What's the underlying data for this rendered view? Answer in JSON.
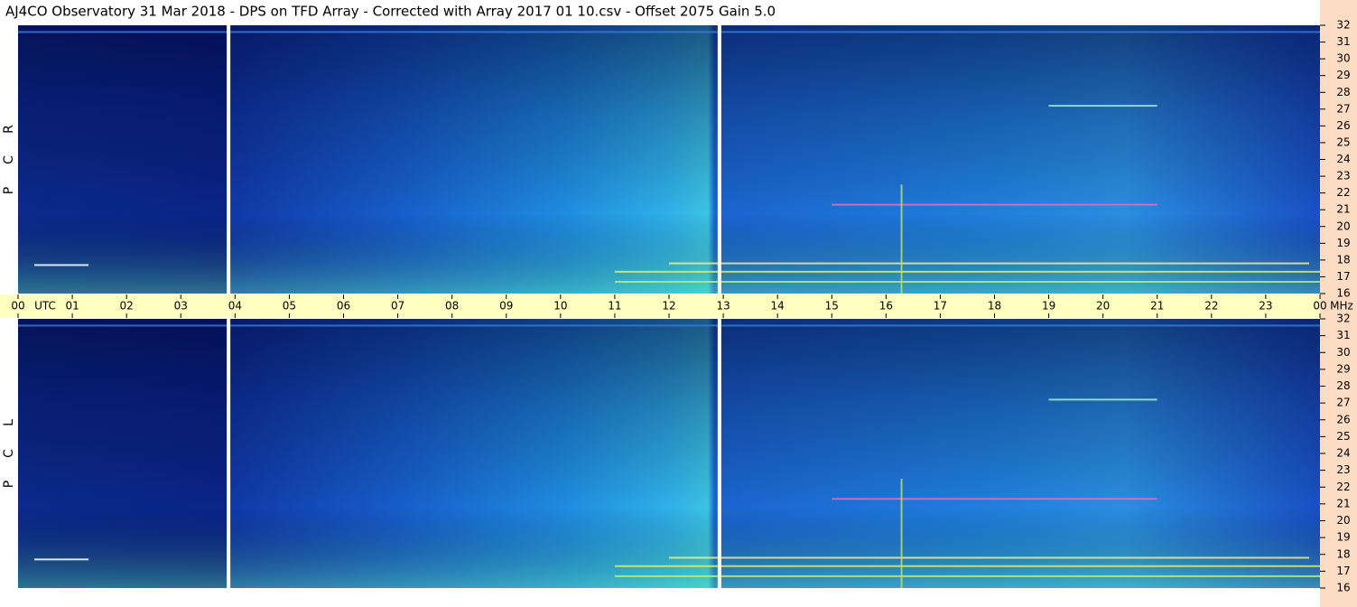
{
  "chart_data": {
    "type": "spectrogram",
    "title": "AJ4CO Observatory  31 Mar 2018  -  DPS on TFD Array  -  Corrected with Array 2017 01 10.csv  -  Offset 2075  Gain 5.0",
    "panel_labels": [
      [
        "R",
        "C",
        "P"
      ],
      [
        "L",
        "C",
        "P"
      ]
    ],
    "x_unit": "UTC",
    "y_unit": "MHz",
    "xlim": [
      0,
      24
    ],
    "xticks": [
      {
        "value": 0,
        "label": "00"
      },
      {
        "value": 1,
        "label": "01"
      },
      {
        "value": 2,
        "label": "02"
      },
      {
        "value": 3,
        "label": "03"
      },
      {
        "value": 4,
        "label": "04"
      },
      {
        "value": 5,
        "label": "05"
      },
      {
        "value": 6,
        "label": "06"
      },
      {
        "value": 7,
        "label": "07"
      },
      {
        "value": 8,
        "label": "08"
      },
      {
        "value": 9,
        "label": "09"
      },
      10,
      11,
      12,
      13,
      14,
      15,
      16,
      17,
      18,
      19,
      20,
      21,
      22,
      23,
      {
        "value": 24,
        "label": "00"
      }
    ],
    "ylim": [
      16,
      32
    ],
    "yticks": [
      16,
      17,
      18,
      19,
      20,
      21,
      22,
      23,
      24,
      25,
      26,
      27,
      28,
      29,
      30,
      31,
      32
    ]
  }
}
